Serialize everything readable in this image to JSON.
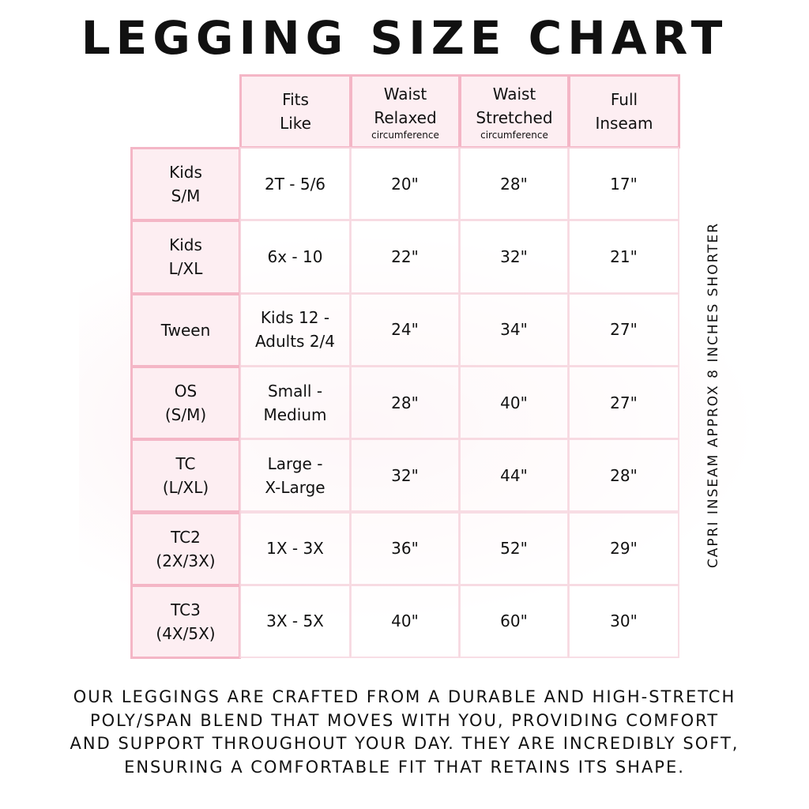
{
  "title": "LEGGING SIZE CHART",
  "columns": [
    {
      "line1": "Fits",
      "line2": "Like",
      "sub": ""
    },
    {
      "line1": "Waist",
      "line2": "Relaxed",
      "sub": "circumference"
    },
    {
      "line1": "Waist",
      "line2": "Stretched",
      "sub": "circumference"
    },
    {
      "line1": "Full",
      "line2": "Inseam",
      "sub": ""
    }
  ],
  "rows": [
    {
      "size1": "Kids",
      "size2": "S/M",
      "fits1": "2T - 5/6",
      "fits2": "",
      "relaxed": "20\"",
      "stretched": "28\"",
      "inseam": "17\""
    },
    {
      "size1": "Kids",
      "size2": "L/XL",
      "fits1": "6x - 10",
      "fits2": "",
      "relaxed": "22\"",
      "stretched": "32\"",
      "inseam": "21\""
    },
    {
      "size1": "Tween",
      "size2": "",
      "fits1": "Kids 12 -",
      "fits2": "Adults 2/4",
      "relaxed": "24\"",
      "stretched": "34\"",
      "inseam": "27\""
    },
    {
      "size1": "OS",
      "size2": "(S/M)",
      "fits1": "Small -",
      "fits2": "Medium",
      "relaxed": "28\"",
      "stretched": "40\"",
      "inseam": "27\""
    },
    {
      "size1": "TC",
      "size2": "(L/XL)",
      "fits1": "Large -",
      "fits2": "X-Large",
      "relaxed": "32\"",
      "stretched": "44\"",
      "inseam": "28\""
    },
    {
      "size1": "TC2",
      "size2": "(2X/3X)",
      "fits1": "1X - 3X",
      "fits2": "",
      "relaxed": "36\"",
      "stretched": "52\"",
      "inseam": "29\""
    },
    {
      "size1": "TC3",
      "size2": "(4X/5X)",
      "fits1": "3X - 5X",
      "fits2": "",
      "relaxed": "40\"",
      "stretched": "60\"",
      "inseam": "30\""
    }
  ],
  "side_note": "CAPRI INSEAM APPROX 8 INCHES SHORTER",
  "footer": [
    "OUR LEGGINGS ARE CRAFTED FROM A DURABLE AND HIGH-STRETCH",
    "POLY/SPAN BLEND THAT MOVES WITH YOU, PROVIDING COMFORT",
    "AND SUPPORT THROUGHOUT YOUR DAY. THEY ARE INCREDIBLY SOFT,",
    "ENSURING A COMFORTABLE FIT THAT RETAINS ITS SHAPE."
  ],
  "colors": {
    "border": "#f4b6c6",
    "header_fill": "#fdeef2"
  }
}
